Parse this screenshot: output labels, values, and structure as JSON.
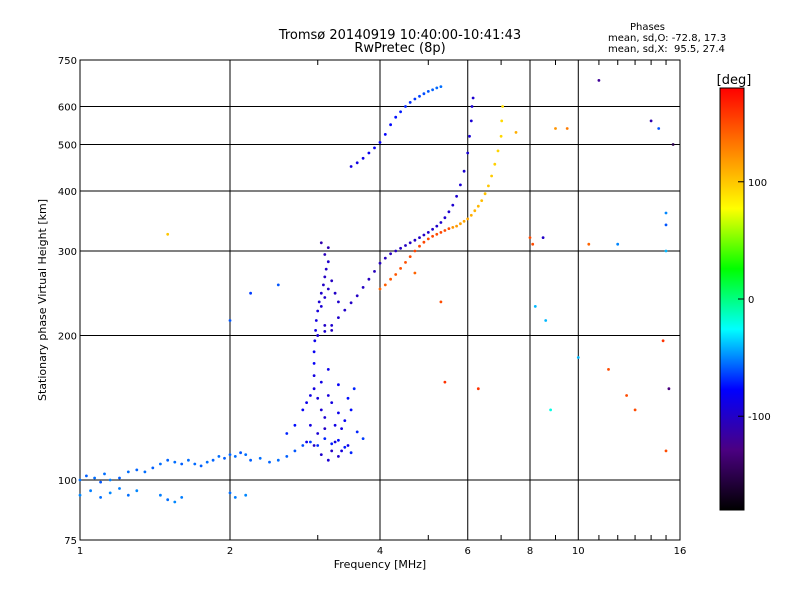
{
  "chart_data": {
    "type": "scatter",
    "title": "Tromsø 20140919 10:40:00-10:41:43",
    "subtitle": "RwPretec (8p)",
    "stats": {
      "heading": "Phases",
      "line_o": "mean, sd,O: -72.8, 17.3",
      "line_x": "mean, sd,X:  95.5, 27.4"
    },
    "xlabel": "Frequency [MHz]",
    "ylabel": "Stationary phase Virtual Height [km]",
    "x_scale": "log",
    "y_scale": "log",
    "xlim": [
      1,
      16
    ],
    "ylim": [
      75,
      750
    ],
    "x_ticks": [
      1,
      2,
      4,
      6,
      8,
      10,
      16
    ],
    "x_tick_labels": [
      "1",
      "2",
      "4",
      "6",
      "8",
      "10",
      "16"
    ],
    "y_ticks": [
      75,
      100,
      200,
      300,
      400,
      500,
      600,
      750
    ],
    "y_tick_labels": [
      "75",
      "100",
      "200",
      "300",
      "400",
      "500",
      "600",
      "750"
    ],
    "grid": true,
    "colorbar": {
      "label": "[deg]",
      "range": [
        -180,
        180
      ],
      "ticks": [
        100,
        0,
        -100
      ],
      "tick_labels": [
        "100",
        "0",
        "-100"
      ],
      "colors": [
        "#000000",
        "#4b0082",
        "#0000ff",
        "#00ffff",
        "#00ff00",
        "#ffff00",
        "#ff8000",
        "#ff0000"
      ]
    },
    "series": [
      {
        "points": [
          [
            1.0,
            100,
            -55
          ],
          [
            1.03,
            102,
            -58
          ],
          [
            1.07,
            101,
            -55
          ],
          [
            1.1,
            99,
            -60
          ],
          [
            1.12,
            103,
            -55
          ],
          [
            1.15,
            100,
            -52
          ],
          [
            1.2,
            101,
            -58
          ],
          [
            1.25,
            104,
            -55
          ],
          [
            1.3,
            105,
            -57
          ],
          [
            1.35,
            104,
            -55
          ],
          [
            1.4,
            106,
            -58
          ],
          [
            1.45,
            108,
            -55
          ],
          [
            1.5,
            110,
            -57
          ],
          [
            1.55,
            109,
            -55
          ],
          [
            1.6,
            108,
            -58
          ],
          [
            1.65,
            110,
            -55
          ],
          [
            1.7,
            108,
            -56
          ],
          [
            1.75,
            107,
            -58
          ],
          [
            1.8,
            109,
            -55
          ],
          [
            1.85,
            110,
            -57
          ],
          [
            1.9,
            112,
            -55
          ],
          [
            1.95,
            111,
            -58
          ],
          [
            2.0,
            113,
            -57
          ],
          [
            2.05,
            112,
            -55
          ],
          [
            2.1,
            114,
            -60
          ],
          [
            2.15,
            113,
            -55
          ],
          [
            2.2,
            110,
            -58
          ],
          [
            2.3,
            111,
            -55
          ],
          [
            2.4,
            109,
            -57
          ],
          [
            2.5,
            110,
            -55
          ],
          [
            2.6,
            112,
            -58
          ],
          [
            2.7,
            115,
            -60
          ],
          [
            2.8,
            118,
            -62
          ],
          [
            2.9,
            120,
            -65
          ],
          [
            3.0,
            118,
            -68
          ],
          [
            3.1,
            122,
            -70
          ],
          [
            3.2,
            119,
            -72
          ],
          [
            3.3,
            121,
            -75
          ],
          [
            3.4,
            117,
            -72
          ],
          [
            3.5,
            114,
            -70
          ]
        ]
      },
      {
        "points": [
          [
            1.0,
            93,
            -50
          ],
          [
            1.05,
            95,
            -52
          ],
          [
            1.1,
            92,
            -55
          ],
          [
            1.15,
            94,
            -50
          ],
          [
            1.2,
            96,
            -52
          ],
          [
            1.25,
            93,
            -55
          ],
          [
            1.3,
            95,
            -50
          ],
          [
            1.45,
            93,
            -52
          ],
          [
            1.5,
            91,
            -55
          ],
          [
            1.55,
            90,
            -50
          ],
          [
            1.6,
            92,
            -52
          ],
          [
            2.0,
            94,
            -55
          ],
          [
            2.05,
            92,
            -52
          ],
          [
            2.15,
            93,
            -50
          ]
        ]
      },
      {
        "points": [
          [
            2.6,
            125,
            -70
          ],
          [
            2.7,
            130,
            -75
          ],
          [
            2.8,
            140,
            -80
          ],
          [
            2.85,
            145,
            -85
          ],
          [
            2.9,
            150,
            -88
          ],
          [
            2.95,
            155,
            -90
          ],
          [
            3.0,
            148,
            -92
          ],
          [
            3.05,
            140,
            -95
          ],
          [
            3.1,
            135,
            -95
          ],
          [
            3.15,
            150,
            -92
          ],
          [
            3.2,
            145,
            -90
          ],
          [
            3.25,
            130,
            -88
          ],
          [
            3.3,
            138,
            -85
          ],
          [
            3.35,
            128,
            -88
          ],
          [
            3.4,
            133,
            -80
          ],
          [
            3.5,
            140,
            -75
          ],
          [
            3.6,
            126,
            -70
          ],
          [
            3.7,
            122,
            -65
          ],
          [
            2.9,
            130,
            -90
          ],
          [
            3.0,
            125,
            -95
          ],
          [
            3.1,
            128,
            -100
          ],
          [
            3.2,
            115,
            -102
          ],
          [
            3.3,
            112,
            -98
          ],
          [
            2.95,
            165,
            -90
          ],
          [
            3.05,
            160,
            -88
          ],
          [
            3.15,
            170,
            -85
          ],
          [
            3.3,
            158,
            -80
          ],
          [
            3.45,
            148,
            -75
          ],
          [
            3.55,
            155,
            -70
          ],
          [
            2.85,
            120,
            -85
          ],
          [
            2.95,
            118,
            -100
          ],
          [
            3.05,
            113,
            -98
          ],
          [
            3.15,
            110,
            -95
          ],
          [
            3.25,
            120,
            -90
          ],
          [
            3.35,
            115,
            -92
          ],
          [
            3.45,
            118,
            -85
          ]
        ]
      },
      {
        "points": [
          [
            2.95,
            175,
            -80
          ],
          [
            2.95,
            185,
            -82
          ],
          [
            2.96,
            195,
            -85
          ],
          [
            2.97,
            205,
            -88
          ],
          [
            2.98,
            215,
            -90
          ],
          [
            3.0,
            225,
            -92
          ],
          [
            3.02,
            235,
            -95
          ],
          [
            3.05,
            245,
            -98
          ],
          [
            3.08,
            255,
            -100
          ],
          [
            3.1,
            265,
            -102
          ],
          [
            3.12,
            275,
            -100
          ],
          [
            3.15,
            285,
            -98
          ],
          [
            3.05,
            230,
            -95
          ],
          [
            3.1,
            240,
            -98
          ],
          [
            3.15,
            250,
            -100
          ],
          [
            3.2,
            260,
            -102
          ],
          [
            3.25,
            245,
            -100
          ],
          [
            3.3,
            235,
            -98
          ],
          [
            3.1,
            210,
            -100
          ],
          [
            3.2,
            205,
            -102
          ],
          [
            3.0,
            200,
            -100
          ],
          [
            3.1,
            295,
            -105
          ],
          [
            3.15,
            305,
            -108
          ],
          [
            3.05,
            312,
            -110
          ]
        ]
      },
      {
        "points": [
          [
            3.0,
            200,
            -95
          ],
          [
            3.1,
            204,
            -96
          ],
          [
            3.2,
            210,
            -97
          ],
          [
            3.3,
            218,
            -98
          ],
          [
            3.4,
            226,
            -99
          ],
          [
            3.5,
            234,
            -100
          ],
          [
            3.6,
            242,
            -101
          ],
          [
            3.7,
            252,
            -102
          ],
          [
            3.8,
            262,
            -103
          ],
          [
            3.9,
            272,
            -104
          ],
          [
            4.0,
            283,
            -104
          ],
          [
            4.1,
            290,
            -104
          ],
          [
            4.2,
            296,
            -103
          ],
          [
            4.3,
            300,
            -103
          ],
          [
            4.4,
            304,
            -102
          ],
          [
            4.5,
            308,
            -102
          ],
          [
            4.6,
            312,
            -101
          ],
          [
            4.7,
            316,
            -101
          ],
          [
            4.8,
            320,
            -100
          ],
          [
            4.9,
            324,
            -100
          ],
          [
            5.0,
            328,
            -99
          ],
          [
            5.1,
            333,
            -99
          ],
          [
            5.2,
            338,
            -98
          ],
          [
            5.3,
            344,
            -98
          ],
          [
            5.4,
            352,
            -97
          ],
          [
            5.5,
            362,
            -97
          ],
          [
            5.6,
            374,
            -96
          ],
          [
            5.7,
            390,
            -96
          ],
          [
            5.8,
            412,
            -95
          ],
          [
            5.9,
            440,
            -95
          ],
          [
            6.0,
            480,
            -94
          ],
          [
            6.05,
            520,
            -94
          ],
          [
            6.1,
            560,
            -94
          ],
          [
            6.12,
            600,
            -95
          ],
          [
            6.15,
            625,
            -96
          ]
        ]
      },
      {
        "points": [
          [
            4.0,
            250,
            140
          ],
          [
            4.1,
            255,
            142
          ],
          [
            4.2,
            262,
            145
          ],
          [
            4.3,
            268,
            145
          ],
          [
            4.4,
            276,
            148
          ],
          [
            4.5,
            284,
            148
          ],
          [
            4.6,
            292,
            150
          ],
          [
            4.7,
            300,
            152
          ],
          [
            4.8,
            307,
            150
          ],
          [
            4.9,
            313,
            152
          ],
          [
            5.0,
            318,
            150
          ],
          [
            5.1,
            322,
            152
          ],
          [
            5.2,
            325,
            150
          ],
          [
            5.3,
            328,
            152
          ],
          [
            5.4,
            331,
            150
          ],
          [
            5.5,
            334,
            150
          ]
        ]
      },
      {
        "points": [
          [
            5.6,
            336,
            120
          ],
          [
            5.7,
            338,
            118
          ],
          [
            5.8,
            342,
            116
          ],
          [
            5.9,
            346,
            114
          ],
          [
            6.0,
            350,
            112
          ],
          [
            6.1,
            356,
            110
          ],
          [
            6.2,
            364,
            108
          ],
          [
            6.3,
            372,
            106
          ],
          [
            6.4,
            382,
            104
          ],
          [
            6.5,
            395,
            102
          ],
          [
            6.6,
            410,
            100
          ],
          [
            6.7,
            430,
            98
          ],
          [
            6.8,
            455,
            96
          ],
          [
            6.9,
            485,
            94
          ],
          [
            7.0,
            520,
            93
          ],
          [
            7.02,
            560,
            92
          ],
          [
            7.05,
            600,
            90
          ]
        ]
      },
      {
        "points": [
          [
            3.5,
            450,
            -90
          ],
          [
            3.6,
            458,
            -88
          ],
          [
            3.7,
            468,
            -86
          ],
          [
            3.8,
            480,
            -84
          ],
          [
            3.9,
            492,
            -82
          ],
          [
            4.0,
            505,
            -80
          ],
          [
            4.1,
            525,
            -78
          ],
          [
            4.2,
            550,
            -76
          ],
          [
            4.3,
            570,
            -74
          ],
          [
            4.4,
            585,
            -72
          ],
          [
            4.5,
            600,
            -70
          ],
          [
            4.6,
            612,
            -68
          ],
          [
            4.7,
            622,
            -66
          ],
          [
            4.8,
            630,
            -64
          ],
          [
            4.9,
            638,
            -62
          ],
          [
            5.0,
            645,
            -60
          ],
          [
            5.1,
            650,
            -58
          ],
          [
            5.2,
            656,
            -56
          ],
          [
            5.3,
            660,
            -55
          ]
        ]
      },
      {
        "points": [
          [
            1.5,
            325,
            100
          ],
          [
            2.0,
            215,
            -60
          ],
          [
            2.2,
            245,
            -65
          ],
          [
            2.5,
            255,
            -60
          ],
          [
            4.7,
            270,
            140
          ],
          [
            5.3,
            235,
            150
          ],
          [
            5.4,
            160,
            160
          ],
          [
            6.3,
            155,
            160
          ],
          [
            7.5,
            530,
            110
          ],
          [
            8.0,
            320,
            150
          ],
          [
            8.1,
            310,
            150
          ],
          [
            8.5,
            320,
            -100
          ],
          [
            8.2,
            230,
            -40
          ],
          [
            8.6,
            215,
            -40
          ],
          [
            8.8,
            140,
            -20
          ],
          [
            9.0,
            540,
            120
          ],
          [
            9.5,
            540,
            130
          ],
          [
            10.0,
            180,
            -40
          ],
          [
            10.5,
            310,
            140
          ],
          [
            11.0,
            680,
            -120
          ],
          [
            12.0,
            310,
            -50
          ],
          [
            12.5,
            150,
            150
          ],
          [
            13.0,
            140,
            150
          ],
          [
            14.0,
            560,
            -110
          ],
          [
            14.5,
            540,
            -60
          ],
          [
            15.0,
            360,
            -50
          ],
          [
            15.0,
            340,
            -60
          ],
          [
            15.0,
            300,
            -40
          ],
          [
            15.5,
            500,
            -150
          ],
          [
            14.8,
            195,
            160
          ],
          [
            15.0,
            115,
            150
          ],
          [
            15.2,
            155,
            -130
          ],
          [
            11.5,
            170,
            150
          ]
        ]
      }
    ]
  }
}
